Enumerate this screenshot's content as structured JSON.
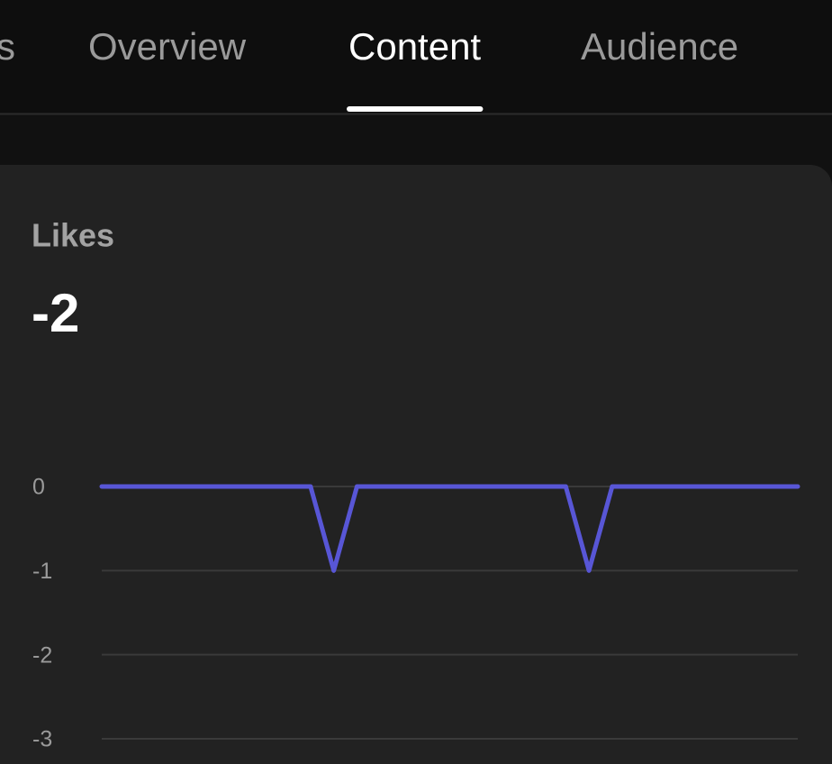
{
  "tabs": [
    {
      "label": "s",
      "active": false
    },
    {
      "label": "Overview",
      "active": false
    },
    {
      "label": "Content",
      "active": true
    },
    {
      "label": "Audience",
      "active": false
    }
  ],
  "card": {
    "title": "Likes",
    "total": -2
  },
  "chart_data": {
    "type": "line",
    "categories": [
      null,
      null,
      null,
      null,
      null,
      null,
      null,
      null,
      null,
      null,
      null,
      null,
      null,
      null,
      null,
      null,
      null,
      null,
      null,
      null,
      null,
      null,
      null,
      null,
      null,
      null,
      null,
      null,
      null,
      null,
      null
    ],
    "values": [
      0,
      0,
      0,
      0,
      0,
      0,
      0,
      0,
      0,
      0,
      -1,
      0,
      0,
      0,
      0,
      0,
      0,
      0,
      0,
      0,
      0,
      -1,
      0,
      0,
      0,
      0,
      0,
      0,
      0,
      0,
      0
    ],
    "color": "#5856d6",
    "ylim": [
      -3,
      0
    ],
    "yticks": [
      0,
      -1,
      -2,
      -3
    ],
    "grid": true
  }
}
